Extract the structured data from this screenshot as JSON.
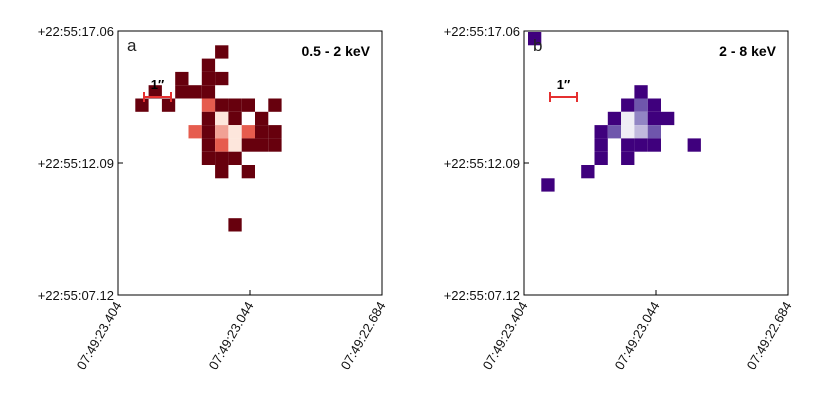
{
  "chart_data": [
    {
      "type": "heatmap",
      "panel_label": "a",
      "band_label": "0.5 - 2 keV",
      "scale_bar_label": "1″",
      "y_ticks": [
        "+22:55:17.06",
        "+22:55:12.09",
        "+22:55:07.12"
      ],
      "x_ticks": [
        "07:49:23.404",
        "07:49:23.044",
        "07:49:22.684"
      ],
      "grid": false,
      "colormap": "Reds",
      "colors": {
        "low": "#67000d",
        "mid": "#e03a2a",
        "high": "#fde6dc",
        "scale_bar": "#e53030"
      },
      "pixels": [
        {
          "col": 7,
          "row": 1,
          "value": 1
        },
        {
          "col": 6,
          "row": 2,
          "value": 1
        },
        {
          "col": 4,
          "row": 3,
          "value": 1
        },
        {
          "col": 6,
          "row": 3,
          "value": 1
        },
        {
          "col": 7,
          "row": 3,
          "value": 1
        },
        {
          "col": 2,
          "row": 4,
          "value": 1
        },
        {
          "col": 4,
          "row": 4,
          "value": 1
        },
        {
          "col": 5,
          "row": 4,
          "value": 1
        },
        {
          "col": 6,
          "row": 4,
          "value": 1
        },
        {
          "col": 1,
          "row": 5,
          "value": 1
        },
        {
          "col": 3,
          "row": 5,
          "value": 1
        },
        {
          "col": 6,
          "row": 5,
          "value": 4
        },
        {
          "col": 7,
          "row": 5,
          "value": 1
        },
        {
          "col": 8,
          "row": 5,
          "value": 1
        },
        {
          "col": 9,
          "row": 5,
          "value": 1
        },
        {
          "col": 11,
          "row": 5,
          "value": 1
        },
        {
          "col": 6,
          "row": 6,
          "value": 1
        },
        {
          "col": 7,
          "row": 6,
          "value": 6
        },
        {
          "col": 8,
          "row": 6,
          "value": 1
        },
        {
          "col": 10,
          "row": 6,
          "value": 1
        },
        {
          "col": 5,
          "row": 7,
          "value": 4
        },
        {
          "col": 6,
          "row": 7,
          "value": 1
        },
        {
          "col": 7,
          "row": 7,
          "value": 5
        },
        {
          "col": 8,
          "row": 7,
          "value": 6
        },
        {
          "col": 9,
          "row": 7,
          "value": 4
        },
        {
          "col": 10,
          "row": 7,
          "value": 1
        },
        {
          "col": 11,
          "row": 7,
          "value": 1
        },
        {
          "col": 6,
          "row": 8,
          "value": 1
        },
        {
          "col": 7,
          "row": 8,
          "value": 4
        },
        {
          "col": 8,
          "row": 8,
          "value": 6
        },
        {
          "col": 9,
          "row": 8,
          "value": 1
        },
        {
          "col": 10,
          "row": 8,
          "value": 1
        },
        {
          "col": 11,
          "row": 8,
          "value": 1
        },
        {
          "col": 6,
          "row": 9,
          "value": 1
        },
        {
          "col": 7,
          "row": 9,
          "value": 1
        },
        {
          "col": 8,
          "row": 9,
          "value": 1
        },
        {
          "col": 7,
          "row": 10,
          "value": 1
        },
        {
          "col": 9,
          "row": 10,
          "value": 1
        },
        {
          "col": 8,
          "row": 14,
          "value": 1
        }
      ]
    },
    {
      "type": "heatmap",
      "panel_label": "b",
      "band_label": "2 - 8 keV",
      "scale_bar_label": "1″",
      "y_ticks": [
        "+22:55:17.06",
        "+22:55:12.09",
        "+22:55:07.12"
      ],
      "x_ticks": [
        "07:49:23.404",
        "07:49:23.044",
        "07:49:22.684"
      ],
      "grid": false,
      "colormap": "Purples",
      "colors": {
        "low": "#3f007d",
        "mid": "#7b6bb8",
        "high": "#efedf5",
        "scale_bar": "#e53030"
      },
      "pixels": [
        {
          "col": 0,
          "row": 0,
          "value": 1
        },
        {
          "col": 8,
          "row": 4,
          "value": 1
        },
        {
          "col": 7,
          "row": 5,
          "value": 1
        },
        {
          "col": 9,
          "row": 5,
          "value": 1
        },
        {
          "col": 8,
          "row": 5,
          "value": 3
        },
        {
          "col": 6,
          "row": 6,
          "value": 1
        },
        {
          "col": 7,
          "row": 6,
          "value": 6
        },
        {
          "col": 8,
          "row": 6,
          "value": 4
        },
        {
          "col": 9,
          "row": 6,
          "value": 1
        },
        {
          "col": 10,
          "row": 6,
          "value": 1
        },
        {
          "col": 5,
          "row": 7,
          "value": 1
        },
        {
          "col": 6,
          "row": 7,
          "value": 3
        },
        {
          "col": 7,
          "row": 7,
          "value": 6
        },
        {
          "col": 8,
          "row": 7,
          "value": 5
        },
        {
          "col": 9,
          "row": 7,
          "value": 3
        },
        {
          "col": 5,
          "row": 8,
          "value": 1
        },
        {
          "col": 7,
          "row": 8,
          "value": 1
        },
        {
          "col": 8,
          "row": 8,
          "value": 1
        },
        {
          "col": 9,
          "row": 8,
          "value": 1
        },
        {
          "col": 12,
          "row": 8,
          "value": 1
        },
        {
          "col": 5,
          "row": 9,
          "value": 1
        },
        {
          "col": 7,
          "row": 9,
          "value": 1
        },
        {
          "col": 4,
          "row": 10,
          "value": 1
        },
        {
          "col": 1,
          "row": 11,
          "value": 1
        }
      ]
    }
  ]
}
